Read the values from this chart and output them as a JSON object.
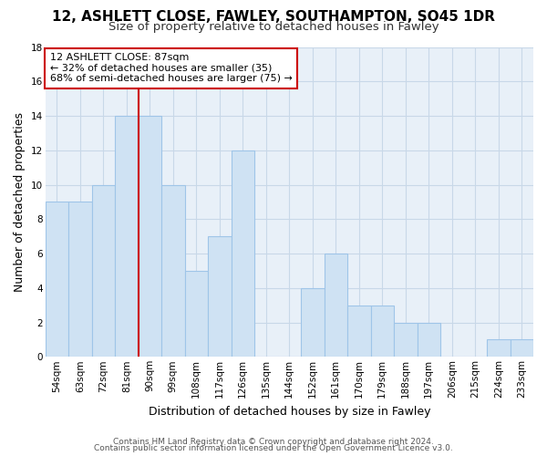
{
  "title": "12, ASHLETT CLOSE, FAWLEY, SOUTHAMPTON, SO45 1DR",
  "subtitle": "Size of property relative to detached houses in Fawley",
  "xlabel": "Distribution of detached houses by size in Fawley",
  "ylabel": "Number of detached properties",
  "bar_labels": [
    "54sqm",
    "63sqm",
    "72sqm",
    "81sqm",
    "90sqm",
    "99sqm",
    "108sqm",
    "117sqm",
    "126sqm",
    "135sqm",
    "144sqm",
    "152sqm",
    "161sqm",
    "170sqm",
    "179sqm",
    "188sqm",
    "197sqm",
    "206sqm",
    "215sqm",
    "224sqm",
    "233sqm"
  ],
  "bar_values": [
    9,
    9,
    10,
    14,
    14,
    10,
    5,
    7,
    12,
    0,
    0,
    4,
    6,
    3,
    3,
    2,
    2,
    0,
    0,
    1,
    1
  ],
  "bar_color": "#cfe2f3",
  "bar_edge_color": "#9fc5e8",
  "vline_color": "#cc0000",
  "annotation_text": "12 ASHLETT CLOSE: 87sqm\n← 32% of detached houses are smaller (35)\n68% of semi-detached houses are larger (75) →",
  "annotation_box_color": "#ffffff",
  "annotation_box_edge": "#cc0000",
  "ylim": [
    0,
    18
  ],
  "yticks": [
    0,
    2,
    4,
    6,
    8,
    10,
    12,
    14,
    16,
    18
  ],
  "footer_line1": "Contains HM Land Registry data © Crown copyright and database right 2024.",
  "footer_line2": "Contains public sector information licensed under the Open Government Licence v3.0.",
  "background_color": "#ffffff",
  "plot_bg_color": "#e8f0f8",
  "grid_color": "#c8d8e8",
  "title_fontsize": 11,
  "subtitle_fontsize": 9.5,
  "axis_label_fontsize": 9,
  "tick_fontsize": 7.5,
  "annotation_fontsize": 8,
  "footer_fontsize": 6.5
}
